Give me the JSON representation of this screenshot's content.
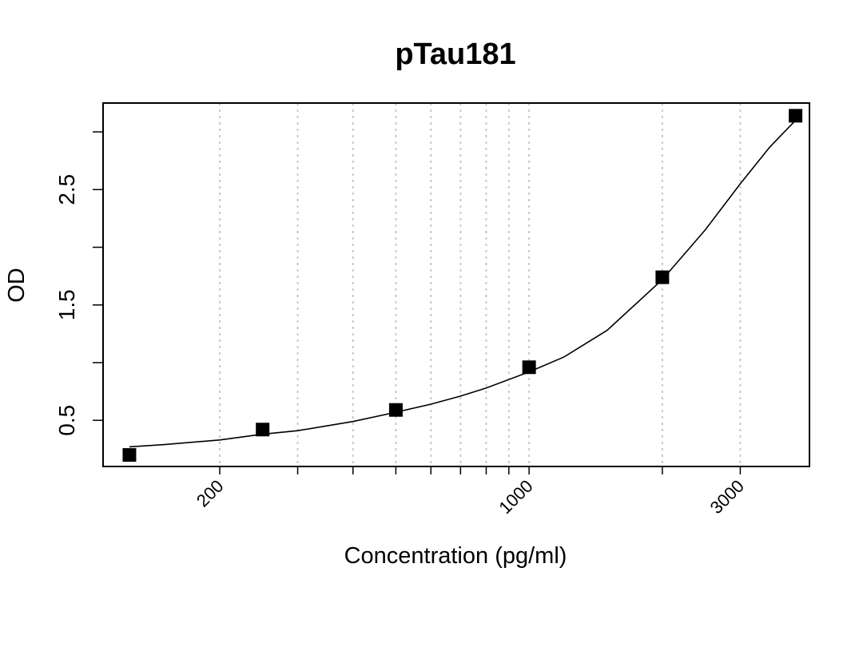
{
  "chart_data": {
    "type": "scatter",
    "title": "pTau181",
    "xlabel": "Concentration (pg/ml)",
    "ylabel": "OD",
    "x_scale": "log",
    "xlim": [
      109,
      4300
    ],
    "ylim": [
      0.1,
      3.25
    ],
    "x_ticks": [
      200,
      1000,
      3000
    ],
    "x_tick_labels": [
      "200",
      "1000",
      "3000"
    ],
    "x_minor_ticks": [
      300,
      400,
      500,
      600,
      700,
      800,
      900,
      2000
    ],
    "y_ticks": [
      0.5,
      1.0,
      1.5,
      2.0,
      2.5,
      3.0
    ],
    "y_tick_labels": [
      "0.5",
      "",
      "1.5",
      "",
      "2.5",
      ""
    ],
    "grid_x": [
      200,
      300,
      400,
      500,
      600,
      700,
      800,
      900,
      1000,
      2000,
      3000
    ],
    "grid_style": "dotted",
    "series": [
      {
        "marker": "square",
        "color": "#000000",
        "x": [
          125,
          250,
          500,
          1000,
          2000,
          4000
        ],
        "y": [
          0.2,
          0.42,
          0.59,
          0.96,
          1.74,
          3.14
        ]
      }
    ],
    "fit_curve": {
      "color": "#000000",
      "x": [
        125,
        150,
        200,
        250,
        300,
        400,
        500,
        600,
        700,
        800,
        1000,
        1200,
        1500,
        2000,
        2500,
        3000,
        3500,
        4000
      ],
      "y": [
        0.27,
        0.29,
        0.33,
        0.38,
        0.41,
        0.49,
        0.57,
        0.64,
        0.71,
        0.78,
        0.92,
        1.05,
        1.28,
        1.72,
        2.15,
        2.55,
        2.87,
        3.1
      ]
    }
  }
}
